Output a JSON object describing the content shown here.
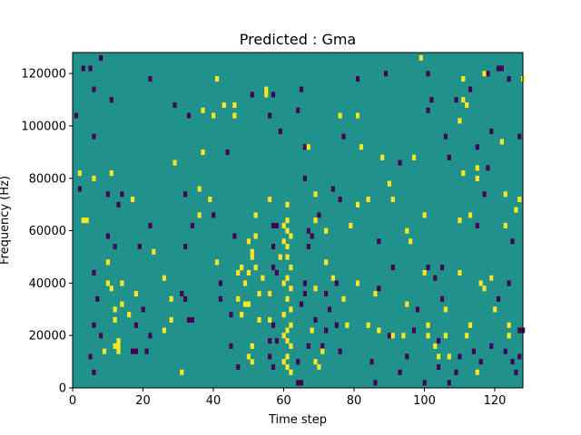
{
  "chart_data": {
    "type": "heatmap",
    "title": "Predicted : Gma",
    "xlabel": "Time step",
    "ylabel": "Frequency (Hz)",
    "xlim": [
      0,
      128
    ],
    "ylim": [
      0,
      128000
    ],
    "x_ticks": [
      0,
      20,
      40,
      60,
      80,
      100,
      120
    ],
    "y_ticks": [
      0,
      20000,
      40000,
      60000,
      80000,
      100000,
      120000
    ],
    "grid": false,
    "colorscale": "viridis",
    "colors": {
      "background": "#21918c",
      "positive": "#fde725",
      "negative": "#440154"
    },
    "cell_height_hz": 2000,
    "yellow_cells": [
      {
        "x": 13,
        "y": 18000
      },
      {
        "x": 13,
        "y": 16000
      },
      {
        "x": 13,
        "y": 14000
      },
      {
        "x": 12,
        "y": 16000
      },
      {
        "x": 9,
        "y": 14000
      },
      {
        "x": 16,
        "y": 28000
      },
      {
        "x": 18,
        "y": 36000
      },
      {
        "x": 14,
        "y": 40000
      },
      {
        "x": 17,
        "y": 72000
      },
      {
        "x": 11,
        "y": 82000
      },
      {
        "x": 6,
        "y": 80000
      },
      {
        "x": 2,
        "y": 82000
      },
      {
        "x": 3,
        "y": 64000
      },
      {
        "x": 4,
        "y": 64000
      },
      {
        "x": 10,
        "y": 48000
      },
      {
        "x": 10,
        "y": 40000
      },
      {
        "x": 11,
        "y": 38000
      },
      {
        "x": 14,
        "y": 32000
      },
      {
        "x": 12,
        "y": 30000
      },
      {
        "x": 12,
        "y": 26000
      },
      {
        "x": 23,
        "y": 52000
      },
      {
        "x": 26,
        "y": 42000
      },
      {
        "x": 28,
        "y": 34000
      },
      {
        "x": 28,
        "y": 26000
      },
      {
        "x": 31,
        "y": 6000
      },
      {
        "x": 36,
        "y": 76000
      },
      {
        "x": 36,
        "y": 66000
      },
      {
        "x": 37,
        "y": 90000
      },
      {
        "x": 39,
        "y": 72000
      },
      {
        "x": 40,
        "y": 104000
      },
      {
        "x": 41,
        "y": 118000
      },
      {
        "x": 43,
        "y": 108000
      },
      {
        "x": 46,
        "y": 108000
      },
      {
        "x": 46,
        "y": 104000
      },
      {
        "x": 41,
        "y": 48000
      },
      {
        "x": 47,
        "y": 44000
      },
      {
        "x": 48,
        "y": 46000
      },
      {
        "x": 49,
        "y": 40000
      },
      {
        "x": 47,
        "y": 34000
      },
      {
        "x": 48,
        "y": 28000
      },
      {
        "x": 49,
        "y": 32000
      },
      {
        "x": 50,
        "y": 44000
      },
      {
        "x": 50,
        "y": 32000
      },
      {
        "x": 50,
        "y": 56000
      },
      {
        "x": 52,
        "y": 66000
      },
      {
        "x": 52,
        "y": 58000
      },
      {
        "x": 51,
        "y": 52000
      },
      {
        "x": 51,
        "y": 50000
      },
      {
        "x": 52,
        "y": 46000
      },
      {
        "x": 53,
        "y": 36000
      },
      {
        "x": 53,
        "y": 26000
      },
      {
        "x": 51,
        "y": 16000
      },
      {
        "x": 50,
        "y": 12000
      },
      {
        "x": 51,
        "y": 10000
      },
      {
        "x": 56,
        "y": 26000
      },
      {
        "x": 56,
        "y": 36000
      },
      {
        "x": 54,
        "y": 42000
      },
      {
        "x": 56,
        "y": 72000
      },
      {
        "x": 55,
        "y": 112000
      },
      {
        "x": 55,
        "y": 114000
      },
      {
        "x": 61,
        "y": 70000
      },
      {
        "x": 61,
        "y": 64000
      },
      {
        "x": 60,
        "y": 62000
      },
      {
        "x": 61,
        "y": 60000
      },
      {
        "x": 62,
        "y": 58000
      },
      {
        "x": 60,
        "y": 56000
      },
      {
        "x": 61,
        "y": 54000
      },
      {
        "x": 61,
        "y": 50000
      },
      {
        "x": 62,
        "y": 46000
      },
      {
        "x": 61,
        "y": 42000
      },
      {
        "x": 60,
        "y": 40000
      },
      {
        "x": 62,
        "y": 38000
      },
      {
        "x": 61,
        "y": 34000
      },
      {
        "x": 62,
        "y": 30000
      },
      {
        "x": 60,
        "y": 28000
      },
      {
        "x": 62,
        "y": 24000
      },
      {
        "x": 61,
        "y": 22000
      },
      {
        "x": 60,
        "y": 20000
      },
      {
        "x": 61,
        "y": 18000
      },
      {
        "x": 62,
        "y": 16000
      },
      {
        "x": 61,
        "y": 12000
      },
      {
        "x": 60,
        "y": 10000
      },
      {
        "x": 61,
        "y": 8000
      },
      {
        "x": 62,
        "y": 6000
      },
      {
        "x": 67,
        "y": 92000
      },
      {
        "x": 69,
        "y": 74000
      },
      {
        "x": 69,
        "y": 64000
      },
      {
        "x": 72,
        "y": 60000
      },
      {
        "x": 72,
        "y": 48000
      },
      {
        "x": 74,
        "y": 42000
      },
      {
        "x": 69,
        "y": 38000
      },
      {
        "x": 68,
        "y": 22000
      },
      {
        "x": 71,
        "y": 14000
      },
      {
        "x": 69,
        "y": 10000
      },
      {
        "x": 70,
        "y": 8000
      },
      {
        "x": 77,
        "y": 34000
      },
      {
        "x": 78,
        "y": 24000
      },
      {
        "x": 76,
        "y": 104000
      },
      {
        "x": 81,
        "y": 104000
      },
      {
        "x": 82,
        "y": 92000
      },
      {
        "x": 84,
        "y": 72000
      },
      {
        "x": 81,
        "y": 70000
      },
      {
        "x": 79,
        "y": 62000
      },
      {
        "x": 81,
        "y": 40000
      },
      {
        "x": 84,
        "y": 24000
      },
      {
        "x": 86,
        "y": 36000
      },
      {
        "x": 87,
        "y": 22000
      },
      {
        "x": 88,
        "y": 88000
      },
      {
        "x": 90,
        "y": 78000
      },
      {
        "x": 91,
        "y": 72000
      },
      {
        "x": 95,
        "y": 60000
      },
      {
        "x": 96,
        "y": 56000
      },
      {
        "x": 91,
        "y": 20000
      },
      {
        "x": 94,
        "y": 20000
      },
      {
        "x": 95,
        "y": 32000
      },
      {
        "x": 97,
        "y": 88000
      },
      {
        "x": 99,
        "y": 126000
      },
      {
        "x": 100,
        "y": 66000
      },
      {
        "x": 100,
        "y": 44000
      },
      {
        "x": 101,
        "y": 20000
      },
      {
        "x": 101,
        "y": 24000
      },
      {
        "x": 103,
        "y": 16000
      },
      {
        "x": 104,
        "y": 12000
      },
      {
        "x": 106,
        "y": 30000
      },
      {
        "x": 106,
        "y": 20000
      },
      {
        "x": 107,
        "y": 12000
      },
      {
        "x": 110,
        "y": 64000
      },
      {
        "x": 110,
        "y": 44000
      },
      {
        "x": 110,
        "y": 102000
      },
      {
        "x": 111,
        "y": 118000
      },
      {
        "x": 111,
        "y": 110000
      },
      {
        "x": 112,
        "y": 108000
      },
      {
        "x": 111,
        "y": 82000
      },
      {
        "x": 113,
        "y": 66000
      },
      {
        "x": 113,
        "y": 24000
      },
      {
        "x": 112,
        "y": 20000
      },
      {
        "x": 115,
        "y": 84000
      },
      {
        "x": 115,
        "y": 80000
      },
      {
        "x": 117,
        "y": 120000
      },
      {
        "x": 115,
        "y": 6000
      },
      {
        "x": 117,
        "y": 38000
      },
      {
        "x": 116,
        "y": 40000
      },
      {
        "x": 119,
        "y": 42000
      },
      {
        "x": 120,
        "y": 30000
      },
      {
        "x": 122,
        "y": 94000
      },
      {
        "x": 123,
        "y": 62000
      },
      {
        "x": 123,
        "y": 74000
      },
      {
        "x": 124,
        "y": 24000
      },
      {
        "x": 124,
        "y": 20000
      },
      {
        "x": 126,
        "y": 68000
      },
      {
        "x": 127,
        "y": 72000
      },
      {
        "x": 128,
        "y": 118000
      },
      {
        "x": 26,
        "y": 22000
      },
      {
        "x": 29,
        "y": 86000
      },
      {
        "x": 37,
        "y": 106000
      },
      {
        "x": 59,
        "y": 50000
      }
    ],
    "purple_cells": [
      {
        "x": 3,
        "y": 122000
      },
      {
        "x": 6,
        "y": 114000
      },
      {
        "x": 5,
        "y": 122000
      },
      {
        "x": 11,
        "y": 110000
      },
      {
        "x": 8,
        "y": 126000
      },
      {
        "x": 1,
        "y": 104000
      },
      {
        "x": 2,
        "y": 76000
      },
      {
        "x": 10,
        "y": 74000
      },
      {
        "x": 13,
        "y": 70000
      },
      {
        "x": 14,
        "y": 74000
      },
      {
        "x": 10,
        "y": 58000
      },
      {
        "x": 12,
        "y": 54000
      },
      {
        "x": 6,
        "y": 44000
      },
      {
        "x": 7,
        "y": 34000
      },
      {
        "x": 6,
        "y": 24000
      },
      {
        "x": 8,
        "y": 20000
      },
      {
        "x": 5,
        "y": 12000
      },
      {
        "x": 6,
        "y": 6000
      },
      {
        "x": 17,
        "y": 14000
      },
      {
        "x": 18,
        "y": 14000
      },
      {
        "x": 21,
        "y": 14000
      },
      {
        "x": 22,
        "y": 20000
      },
      {
        "x": 18,
        "y": 24000
      },
      {
        "x": 20,
        "y": 30000
      },
      {
        "x": 19,
        "y": 54000
      },
      {
        "x": 22,
        "y": 62000
      },
      {
        "x": 22,
        "y": 118000
      },
      {
        "x": 29,
        "y": 108000
      },
      {
        "x": 33,
        "y": 104000
      },
      {
        "x": 32,
        "y": 34000
      },
      {
        "x": 33,
        "y": 26000
      },
      {
        "x": 34,
        "y": 26000
      },
      {
        "x": 31,
        "y": 36000
      },
      {
        "x": 32,
        "y": 54000
      },
      {
        "x": 34,
        "y": 62000
      },
      {
        "x": 32,
        "y": 74000
      },
      {
        "x": 40,
        "y": 66000
      },
      {
        "x": 42,
        "y": 40000
      },
      {
        "x": 42,
        "y": 34000
      },
      {
        "x": 45,
        "y": 28000
      },
      {
        "x": 47,
        "y": 8000
      },
      {
        "x": 45,
        "y": 16000
      },
      {
        "x": 46,
        "y": 58000
      },
      {
        "x": 44,
        "y": 90000
      },
      {
        "x": 51,
        "y": 112000
      },
      {
        "x": 57,
        "y": 112000
      },
      {
        "x": 56,
        "y": 104000
      },
      {
        "x": 59,
        "y": 98000
      },
      {
        "x": 56,
        "y": 72000
      },
      {
        "x": 57,
        "y": 62000
      },
      {
        "x": 58,
        "y": 62000
      },
      {
        "x": 57,
        "y": 54000
      },
      {
        "x": 57,
        "y": 46000
      },
      {
        "x": 58,
        "y": 44000
      },
      {
        "x": 56,
        "y": 36000
      },
      {
        "x": 57,
        "y": 24000
      },
      {
        "x": 56,
        "y": 18000
      },
      {
        "x": 58,
        "y": 18000
      },
      {
        "x": 56,
        "y": 12000
      },
      {
        "x": 57,
        "y": 8000
      },
      {
        "x": 64,
        "y": 10000
      },
      {
        "x": 64,
        "y": 2000
      },
      {
        "x": 65,
        "y": 2000
      },
      {
        "x": 65,
        "y": 32000
      },
      {
        "x": 66,
        "y": 36000
      },
      {
        "x": 66,
        "y": 40000
      },
      {
        "x": 67,
        "y": 54000
      },
      {
        "x": 68,
        "y": 58000
      },
      {
        "x": 67,
        "y": 60000
      },
      {
        "x": 70,
        "y": 66000
      },
      {
        "x": 69,
        "y": 26000
      },
      {
        "x": 67,
        "y": 16000
      },
      {
        "x": 66,
        "y": 80000
      },
      {
        "x": 66,
        "y": 92000
      },
      {
        "x": 64,
        "y": 106000
      },
      {
        "x": 65,
        "y": 114000
      },
      {
        "x": 72,
        "y": 36000
      },
      {
        "x": 73,
        "y": 30000
      },
      {
        "x": 75,
        "y": 24000
      },
      {
        "x": 75,
        "y": 40000
      },
      {
        "x": 72,
        "y": 22000
      },
      {
        "x": 71,
        "y": 16000
      },
      {
        "x": 76,
        "y": 14000
      },
      {
        "x": 76,
        "y": 72000
      },
      {
        "x": 74,
        "y": 76000
      },
      {
        "x": 81,
        "y": 118000
      },
      {
        "x": 89,
        "y": 120000
      },
      {
        "x": 93,
        "y": 86000
      },
      {
        "x": 87,
        "y": 56000
      },
      {
        "x": 91,
        "y": 46000
      },
      {
        "x": 87,
        "y": 38000
      },
      {
        "x": 90,
        "y": 20000
      },
      {
        "x": 85,
        "y": 10000
      },
      {
        "x": 86,
        "y": 2000
      },
      {
        "x": 93,
        "y": 6000
      },
      {
        "x": 98,
        "y": 30000
      },
      {
        "x": 97,
        "y": 22000
      },
      {
        "x": 95,
        "y": 12000
      },
      {
        "x": 100,
        "y": 2000
      },
      {
        "x": 101,
        "y": 46000
      },
      {
        "x": 103,
        "y": 42000
      },
      {
        "x": 105,
        "y": 46000
      },
      {
        "x": 105,
        "y": 34000
      },
      {
        "x": 104,
        "y": 18000
      },
      {
        "x": 104,
        "y": 8000
      },
      {
        "x": 107,
        "y": 2000
      },
      {
        "x": 109,
        "y": 6000
      },
      {
        "x": 110,
        "y": 12000
      },
      {
        "x": 114,
        "y": 14000
      },
      {
        "x": 116,
        "y": 10000
      },
      {
        "x": 119,
        "y": 16000
      },
      {
        "x": 121,
        "y": 34000
      },
      {
        "x": 119,
        "y": 42000
      },
      {
        "x": 115,
        "y": 62000
      },
      {
        "x": 117,
        "y": 74000
      },
      {
        "x": 118,
        "y": 84000
      },
      {
        "x": 115,
        "y": 92000
      },
      {
        "x": 113,
        "y": 114000
      },
      {
        "x": 109,
        "y": 110000
      },
      {
        "x": 106,
        "y": 96000
      },
      {
        "x": 101,
        "y": 106000
      },
      {
        "x": 102,
        "y": 110000
      },
      {
        "x": 101,
        "y": 120000
      },
      {
        "x": 107,
        "y": 88000
      },
      {
        "x": 119,
        "y": 98000
      },
      {
        "x": 118,
        "y": 120000
      },
      {
        "x": 121,
        "y": 122000
      },
      {
        "x": 122,
        "y": 122000
      },
      {
        "x": 124,
        "y": 118000
      },
      {
        "x": 127,
        "y": 96000
      },
      {
        "x": 125,
        "y": 56000
      },
      {
        "x": 124,
        "y": 40000
      },
      {
        "x": 127,
        "y": 22000
      },
      {
        "x": 128,
        "y": 22000
      },
      {
        "x": 123,
        "y": 14000
      },
      {
        "x": 125,
        "y": 10000
      },
      {
        "x": 126,
        "y": 6000
      },
      {
        "x": 127,
        "y": 12000
      },
      {
        "x": 6,
        "y": 96000
      },
      {
        "x": 77,
        "y": 96000
      }
    ]
  }
}
